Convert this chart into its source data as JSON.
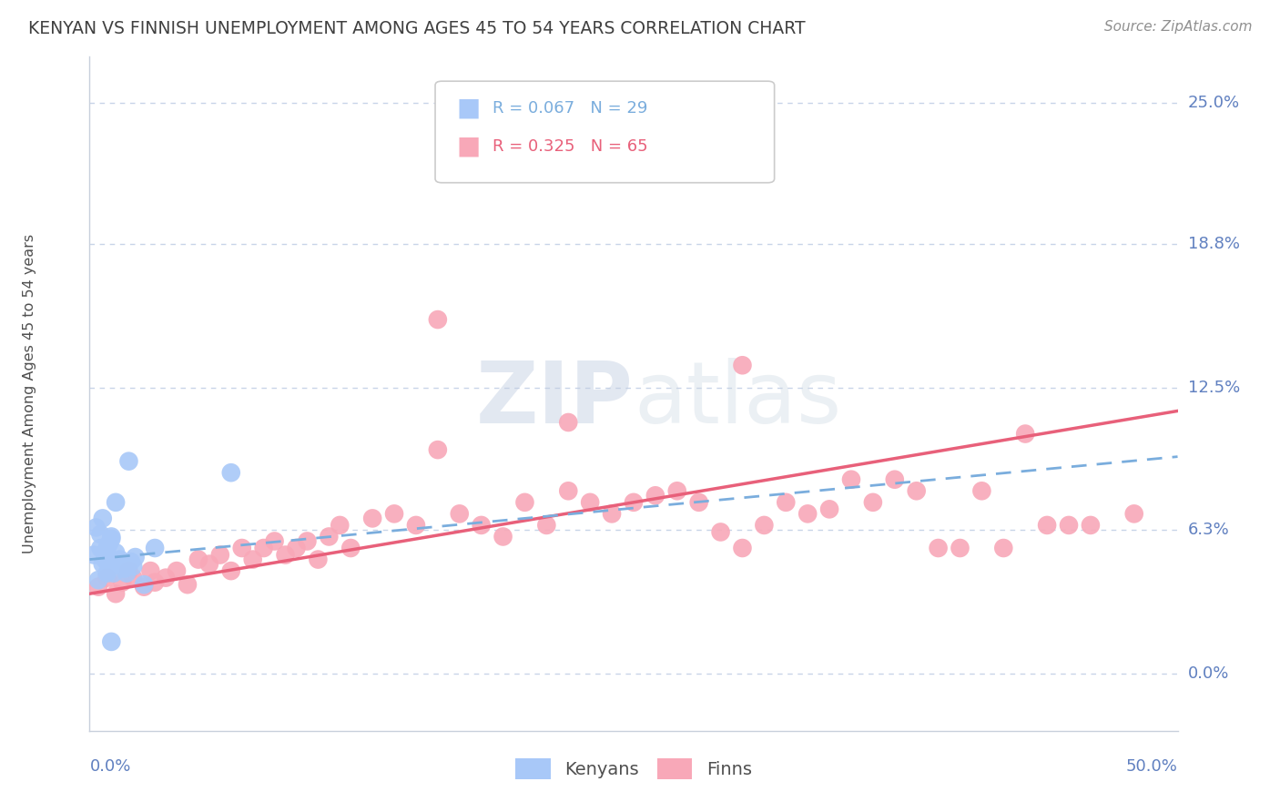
{
  "title": "KENYAN VS FINNISH UNEMPLOYMENT AMONG AGES 45 TO 54 YEARS CORRELATION CHART",
  "source": "Source: ZipAtlas.com",
  "ylabel": "Unemployment Among Ages 45 to 54 years",
  "ytick_labels": [
    "0.0%",
    "6.3%",
    "12.5%",
    "18.8%",
    "25.0%"
  ],
  "ytick_values": [
    0.0,
    6.3,
    12.5,
    18.8,
    25.0
  ],
  "xlim": [
    0.0,
    50.0
  ],
  "ylim": [
    -2.5,
    27.0
  ],
  "legend_title_kenyans": "Kenyans",
  "legend_title_finns": "Finns",
  "kenyan_color": "#a8c8f8",
  "finn_color": "#f8a8b8",
  "kenyan_line_color": "#7aaddd",
  "finn_line_color": "#e8607a",
  "kenyan_R": 0.067,
  "kenyan_N": 29,
  "finn_R": 0.325,
  "finn_N": 65,
  "background_color": "#ffffff",
  "grid_color": "#c8d4e8",
  "title_color": "#404040",
  "axis_label_color": "#6080c0",
  "source_color": "#909090",
  "kenyan_scatter_x": [
    0.2,
    0.3,
    0.4,
    0.5,
    0.5,
    0.6,
    0.6,
    0.7,
    0.8,
    0.8,
    0.9,
    1.0,
    1.0,
    1.1,
    1.2,
    1.2,
    1.3,
    1.4,
    1.5,
    1.6,
    1.7,
    1.8,
    1.9,
    2.0,
    2.1,
    2.5,
    3.0,
    6.5,
    1.0
  ],
  "kenyan_scatter_y": [
    5.2,
    6.4,
    4.1,
    5.5,
    6.1,
    4.8,
    6.8,
    5.0,
    4.4,
    5.5,
    5.7,
    5.9,
    6.0,
    4.4,
    5.3,
    7.5,
    4.9,
    5.0,
    4.7,
    4.6,
    4.4,
    9.3,
    4.9,
    4.7,
    5.1,
    3.9,
    5.5,
    8.8,
    1.4
  ],
  "finn_scatter_x": [
    0.4,
    0.8,
    1.2,
    1.5,
    1.8,
    2.0,
    2.5,
    2.8,
    3.0,
    3.5,
    4.0,
    4.5,
    5.0,
    5.5,
    6.0,
    6.5,
    7.0,
    7.5,
    8.0,
    8.5,
    9.0,
    9.5,
    10.0,
    10.5,
    11.0,
    11.5,
    12.0,
    13.0,
    14.0,
    15.0,
    16.0,
    17.0,
    18.0,
    19.0,
    20.0,
    21.0,
    22.0,
    23.0,
    24.0,
    25.0,
    26.0,
    27.0,
    28.0,
    29.0,
    30.0,
    31.0,
    32.0,
    33.0,
    34.0,
    35.0,
    36.0,
    37.0,
    38.0,
    39.0,
    40.0,
    41.0,
    42.0,
    43.0,
    44.0,
    45.0,
    46.0,
    48.0,
    22.0,
    30.0,
    16.0
  ],
  "finn_scatter_y": [
    3.8,
    4.2,
    3.5,
    4.0,
    4.5,
    4.2,
    3.8,
    4.5,
    4.0,
    4.2,
    4.5,
    3.9,
    5.0,
    4.8,
    5.2,
    4.5,
    5.5,
    5.0,
    5.5,
    5.8,
    5.2,
    5.5,
    5.8,
    5.0,
    6.0,
    6.5,
    5.5,
    6.8,
    7.0,
    6.5,
    9.8,
    7.0,
    6.5,
    6.0,
    7.5,
    6.5,
    8.0,
    7.5,
    7.0,
    7.5,
    7.8,
    8.0,
    7.5,
    6.2,
    5.5,
    6.5,
    7.5,
    7.0,
    7.2,
    8.5,
    7.5,
    8.5,
    8.0,
    5.5,
    5.5,
    8.0,
    5.5,
    10.5,
    6.5,
    6.5,
    6.5,
    7.0,
    11.0,
    13.5,
    15.5
  ],
  "kenyan_trend_x": [
    0.0,
    50.0
  ],
  "kenyan_trend_y": [
    5.0,
    9.5
  ],
  "finn_trend_x": [
    0.0,
    50.0
  ],
  "finn_trend_y": [
    3.5,
    11.5
  ],
  "watermark_zip": "ZIP",
  "watermark_atlas": "atlas",
  "watermark_color": "#c8d4e8"
}
